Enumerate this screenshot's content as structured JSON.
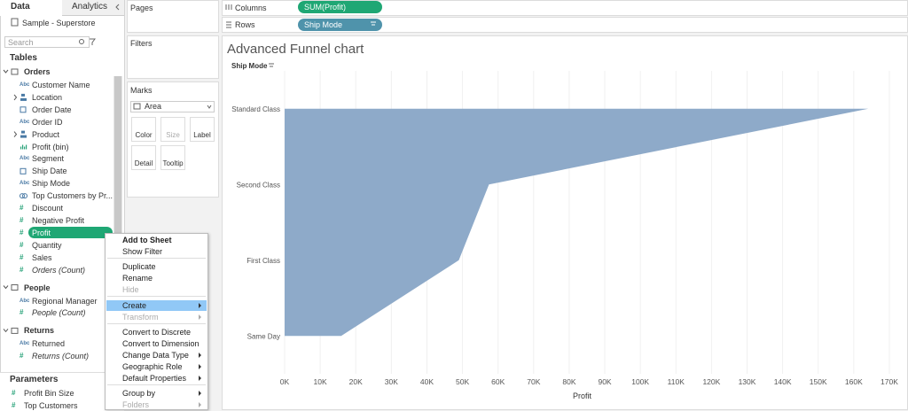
{
  "sidebar": {
    "tabs": [
      "Data",
      "Analytics"
    ],
    "datasource": "Sample - Superstore",
    "search": "Search",
    "tables": "Tables",
    "groups": [
      {
        "name": "Orders",
        "fields": [
          {
            "icon": "Abc",
            "name": "Customer Name"
          },
          {
            "icon": "hierarchy",
            "name": "Location",
            "expandable": true
          },
          {
            "icon": "date",
            "name": "Order Date"
          },
          {
            "icon": "Abc",
            "name": "Order ID"
          },
          {
            "icon": "hierarchy",
            "name": "Product",
            "expandable": true
          },
          {
            "icon": "bin",
            "name": "Profit (bin)"
          },
          {
            "icon": "Abc",
            "name": "Segment"
          },
          {
            "icon": "date",
            "name": "Ship Date"
          },
          {
            "icon": "Abc",
            "name": "Ship Mode"
          },
          {
            "icon": "set",
            "name": "Top Customers by Pr..."
          },
          {
            "icon": "#",
            "name": "Discount"
          },
          {
            "icon": "#",
            "name": "Negative Profit"
          },
          {
            "icon": "#",
            "name": "Profit",
            "selected": true
          },
          {
            "icon": "#",
            "name": "Quantity"
          },
          {
            "icon": "#",
            "name": "Sales"
          },
          {
            "icon": "#",
            "name": "Orders (Count)",
            "italic": true
          }
        ]
      },
      {
        "name": "People",
        "fields": [
          {
            "icon": "Abc",
            "name": "Regional Manager"
          },
          {
            "icon": "#",
            "name": "People (Count)",
            "italic": true
          }
        ]
      },
      {
        "name": "Returns",
        "fields": [
          {
            "icon": "Abc",
            "name": "Returned"
          },
          {
            "icon": "#",
            "name": "Returns (Count)",
            "italic": true
          }
        ]
      }
    ],
    "parameters": {
      "title": "Parameters",
      "items": [
        {
          "icon": "#",
          "name": "Profit Bin Size"
        },
        {
          "icon": "#",
          "name": "Top Customers"
        }
      ]
    }
  },
  "shelves": {
    "pages": "Pages",
    "filters": "Filters",
    "columns": {
      "label": "Columns",
      "pill": "SUM(Profit)"
    },
    "rows": {
      "label": "Rows",
      "pill": "Ship Mode"
    }
  },
  "marks": {
    "title": "Marks",
    "mark_type": "Area",
    "buttons": [
      "Color",
      "Size",
      "Label",
      "Detail",
      "Tooltip"
    ]
  },
  "chart_data": {
    "type": "area",
    "title": "Advanced Funnel chart",
    "row_header": "Ship Mode",
    "x_label": "Profit",
    "categories": [
      "Standard Class",
      "Second Class",
      "First Class",
      "Same Day"
    ],
    "values": [
      164089,
      57446,
      48970,
      15892
    ],
    "color": "#8eaac9",
    "xlim": [
      0,
      172500
    ],
    "xticks": [
      {
        "value": 0,
        "label": "0K"
      },
      {
        "value": 10000,
        "label": "10K"
      },
      {
        "value": 20000,
        "label": "20K"
      },
      {
        "value": 30000,
        "label": "30K"
      },
      {
        "value": 40000,
        "label": "40K"
      },
      {
        "value": 50000,
        "label": "50K"
      },
      {
        "value": 60000,
        "label": "60K"
      },
      {
        "value": 70000,
        "label": "70K"
      },
      {
        "value": 80000,
        "label": "80K"
      },
      {
        "value": 90000,
        "label": "90K"
      },
      {
        "value": 100000,
        "label": "100K"
      },
      {
        "value": 110000,
        "label": "110K"
      },
      {
        "value": 120000,
        "label": "120K"
      },
      {
        "value": 130000,
        "label": "130K"
      },
      {
        "value": 140000,
        "label": "140K"
      },
      {
        "value": 150000,
        "label": "150K"
      },
      {
        "value": 160000,
        "label": "160K"
      },
      {
        "value": 170000,
        "label": "170K"
      }
    ],
    "grid": true
  },
  "context_menu": {
    "sections": [
      [
        {
          "label": "Add to Sheet",
          "style": "bold"
        },
        {
          "label": "Show Filter"
        }
      ],
      [
        {
          "label": "Duplicate"
        },
        {
          "label": "Rename"
        },
        {
          "label": "Hide",
          "style": "disabled"
        }
      ],
      [
        {
          "label": "Create",
          "submenu": true,
          "highlighted": true
        },
        {
          "label": "Transform",
          "submenu": true,
          "style": "disabled"
        }
      ],
      [
        {
          "label": "Convert to Discrete"
        },
        {
          "label": "Convert to Dimension"
        },
        {
          "label": "Change Data Type",
          "submenu": true
        },
        {
          "label": "Geographic Role",
          "submenu": true
        },
        {
          "label": "Default Properties",
          "submenu": true
        }
      ],
      [
        {
          "label": "Group by",
          "submenu": true
        },
        {
          "label": "Folders",
          "submenu": true,
          "style": "disabled"
        }
      ]
    ]
  }
}
